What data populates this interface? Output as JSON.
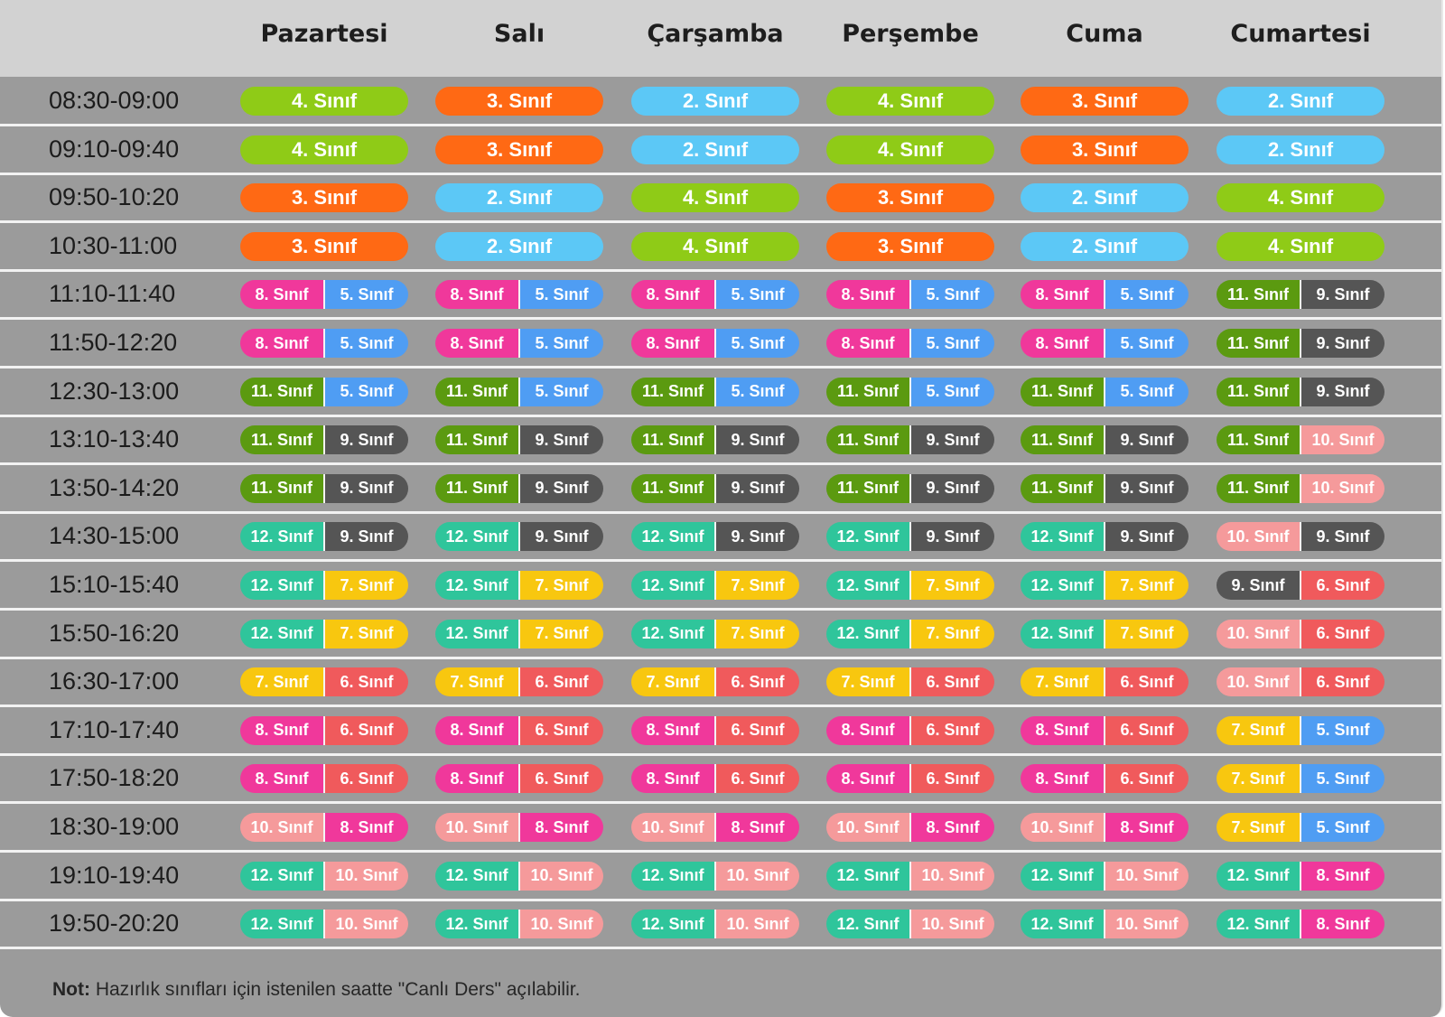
{
  "days": [
    "Pazartesi",
    "Salı",
    "Çarşamba",
    "Perşembe",
    "Cuma",
    "Cumartesi"
  ],
  "grade_colors": {
    "2": "#5cc8f6",
    "3": "#ff6914",
    "4": "#8fcb17",
    "5": "#4f9df3",
    "6": "#f05a5c",
    "7": "#f8c70f",
    "8": "#f0389b",
    "9": "#555555",
    "10": "#f59a9b",
    "11": "#5b9a10",
    "12": "#2fc59b"
  },
  "rows": [
    {
      "time": "08:30-09:00",
      "cells": [
        [
          "4. Sınıf"
        ],
        [
          "3. Sınıf"
        ],
        [
          "2. Sınıf"
        ],
        [
          "4. Sınıf"
        ],
        [
          "3. Sınıf"
        ],
        [
          "2. Sınıf"
        ]
      ]
    },
    {
      "time": "09:10-09:40",
      "cells": [
        [
          "4. Sınıf"
        ],
        [
          "3. Sınıf"
        ],
        [
          "2. Sınıf"
        ],
        [
          "4. Sınıf"
        ],
        [
          "3. Sınıf"
        ],
        [
          "2. Sınıf"
        ]
      ]
    },
    {
      "time": "09:50-10:20",
      "cells": [
        [
          "3. Sınıf"
        ],
        [
          "2. Sınıf"
        ],
        [
          "4. Sınıf"
        ],
        [
          "3. Sınıf"
        ],
        [
          "2. Sınıf"
        ],
        [
          "4. Sınıf"
        ]
      ]
    },
    {
      "time": "10:30-11:00",
      "cells": [
        [
          "3. Sınıf"
        ],
        [
          "2. Sınıf"
        ],
        [
          "4. Sınıf"
        ],
        [
          "3. Sınıf"
        ],
        [
          "2. Sınıf"
        ],
        [
          "4. Sınıf"
        ]
      ]
    },
    {
      "time": "11:10-11:40",
      "cells": [
        [
          "8. Sınıf",
          "5. Sınıf"
        ],
        [
          "8. Sınıf",
          "5. Sınıf"
        ],
        [
          "8. Sınıf",
          "5. Sınıf"
        ],
        [
          "8. Sınıf",
          "5. Sınıf"
        ],
        [
          "8. Sınıf",
          "5. Sınıf"
        ],
        [
          "11. Sınıf",
          "9. Sınıf"
        ]
      ]
    },
    {
      "time": "11:50-12:20",
      "cells": [
        [
          "8. Sınıf",
          "5. Sınıf"
        ],
        [
          "8. Sınıf",
          "5. Sınıf"
        ],
        [
          "8. Sınıf",
          "5. Sınıf"
        ],
        [
          "8. Sınıf",
          "5. Sınıf"
        ],
        [
          "8. Sınıf",
          "5. Sınıf"
        ],
        [
          "11. Sınıf",
          "9. Sınıf"
        ]
      ]
    },
    {
      "time": "12:30-13:00",
      "cells": [
        [
          "11. Sınıf",
          "5. Sınıf"
        ],
        [
          "11. Sınıf",
          "5. Sınıf"
        ],
        [
          "11. Sınıf",
          "5. Sınıf"
        ],
        [
          "11. Sınıf",
          "5. Sınıf"
        ],
        [
          "11. Sınıf",
          "5. Sınıf"
        ],
        [
          "11. Sınıf",
          "9. Sınıf"
        ]
      ]
    },
    {
      "time": "13:10-13:40",
      "cells": [
        [
          "11. Sınıf",
          "9. Sınıf"
        ],
        [
          "11. Sınıf",
          "9. Sınıf"
        ],
        [
          "11. Sınıf",
          "9. Sınıf"
        ],
        [
          "11. Sınıf",
          "9. Sınıf"
        ],
        [
          "11. Sınıf",
          "9. Sınıf"
        ],
        [
          "11. Sınıf",
          "10. Sınıf"
        ]
      ]
    },
    {
      "time": "13:50-14:20",
      "cells": [
        [
          "11. Sınıf",
          "9. Sınıf"
        ],
        [
          "11. Sınıf",
          "9. Sınıf"
        ],
        [
          "11. Sınıf",
          "9. Sınıf"
        ],
        [
          "11. Sınıf",
          "9. Sınıf"
        ],
        [
          "11. Sınıf",
          "9. Sınıf"
        ],
        [
          "11. Sınıf",
          "10. Sınıf"
        ]
      ]
    },
    {
      "time": "14:30-15:00",
      "cells": [
        [
          "12. Sınıf",
          "9. Sınıf"
        ],
        [
          "12. Sınıf",
          "9. Sınıf"
        ],
        [
          "12. Sınıf",
          "9. Sınıf"
        ],
        [
          "12. Sınıf",
          "9. Sınıf"
        ],
        [
          "12. Sınıf",
          "9. Sınıf"
        ],
        [
          "10. Sınıf",
          "9. Sınıf"
        ]
      ]
    },
    {
      "time": "15:10-15:40",
      "cells": [
        [
          "12. Sınıf",
          "7. Sınıf"
        ],
        [
          "12. Sınıf",
          "7. Sınıf"
        ],
        [
          "12. Sınıf",
          "7. Sınıf"
        ],
        [
          "12. Sınıf",
          "7. Sınıf"
        ],
        [
          "12. Sınıf",
          "7. Sınıf"
        ],
        [
          "9. Sınıf",
          "6. Sınıf"
        ]
      ]
    },
    {
      "time": "15:50-16:20",
      "cells": [
        [
          "12. Sınıf",
          "7. Sınıf"
        ],
        [
          "12. Sınıf",
          "7. Sınıf"
        ],
        [
          "12. Sınıf",
          "7. Sınıf"
        ],
        [
          "12. Sınıf",
          "7. Sınıf"
        ],
        [
          "12. Sınıf",
          "7. Sınıf"
        ],
        [
          "10. Sınıf",
          "6. Sınıf"
        ]
      ]
    },
    {
      "time": "16:30-17:00",
      "cells": [
        [
          "7. Sınıf",
          "6. Sınıf"
        ],
        [
          "7. Sınıf",
          "6. Sınıf"
        ],
        [
          "7. Sınıf",
          "6. Sınıf"
        ],
        [
          "7. Sınıf",
          "6. Sınıf"
        ],
        [
          "7. Sınıf",
          "6. Sınıf"
        ],
        [
          "10. Sınıf",
          "6. Sınıf"
        ]
      ]
    },
    {
      "time": "17:10-17:40",
      "cells": [
        [
          "8. Sınıf",
          "6. Sınıf"
        ],
        [
          "8. Sınıf",
          "6. Sınıf"
        ],
        [
          "8. Sınıf",
          "6. Sınıf"
        ],
        [
          "8. Sınıf",
          "6. Sınıf"
        ],
        [
          "8. Sınıf",
          "6. Sınıf"
        ],
        [
          "7. Sınıf",
          "5. Sınıf"
        ]
      ]
    },
    {
      "time": "17:50-18:20",
      "cells": [
        [
          "8. Sınıf",
          "6. Sınıf"
        ],
        [
          "8. Sınıf",
          "6. Sınıf"
        ],
        [
          "8. Sınıf",
          "6. Sınıf"
        ],
        [
          "8. Sınıf",
          "6. Sınıf"
        ],
        [
          "8. Sınıf",
          "6. Sınıf"
        ],
        [
          "7. Sınıf",
          "5. Sınıf"
        ]
      ]
    },
    {
      "time": "18:30-19:00",
      "cells": [
        [
          "10. Sınıf",
          "8. Sınıf"
        ],
        [
          "10. Sınıf",
          "8. Sınıf"
        ],
        [
          "10. Sınıf",
          "8. Sınıf"
        ],
        [
          "10. Sınıf",
          "8. Sınıf"
        ],
        [
          "10. Sınıf",
          "8. Sınıf"
        ],
        [
          "7. Sınıf",
          "5. Sınıf"
        ]
      ]
    },
    {
      "time": "19:10-19:40",
      "cells": [
        [
          "12. Sınıf",
          "10. Sınıf"
        ],
        [
          "12. Sınıf",
          "10. Sınıf"
        ],
        [
          "12. Sınıf",
          "10. Sınıf"
        ],
        [
          "12. Sınıf",
          "10. Sınıf"
        ],
        [
          "12. Sınıf",
          "10. Sınıf"
        ],
        [
          "12. Sınıf",
          "8. Sınıf"
        ]
      ]
    },
    {
      "time": "19:50-20:20",
      "cells": [
        [
          "12. Sınıf",
          "10. Sınıf"
        ],
        [
          "12. Sınıf",
          "10. Sınıf"
        ],
        [
          "12. Sınıf",
          "10. Sınıf"
        ],
        [
          "12. Sınıf",
          "10. Sınıf"
        ],
        [
          "12. Sınıf",
          "10. Sınıf"
        ],
        [
          "12. Sınıf",
          "8. Sınıf"
        ]
      ]
    }
  ],
  "note": {
    "label": "Not:",
    "text": "Hazırlık sınıfları için istenilen saatte \"Canlı Ders\" açılabilir."
  }
}
